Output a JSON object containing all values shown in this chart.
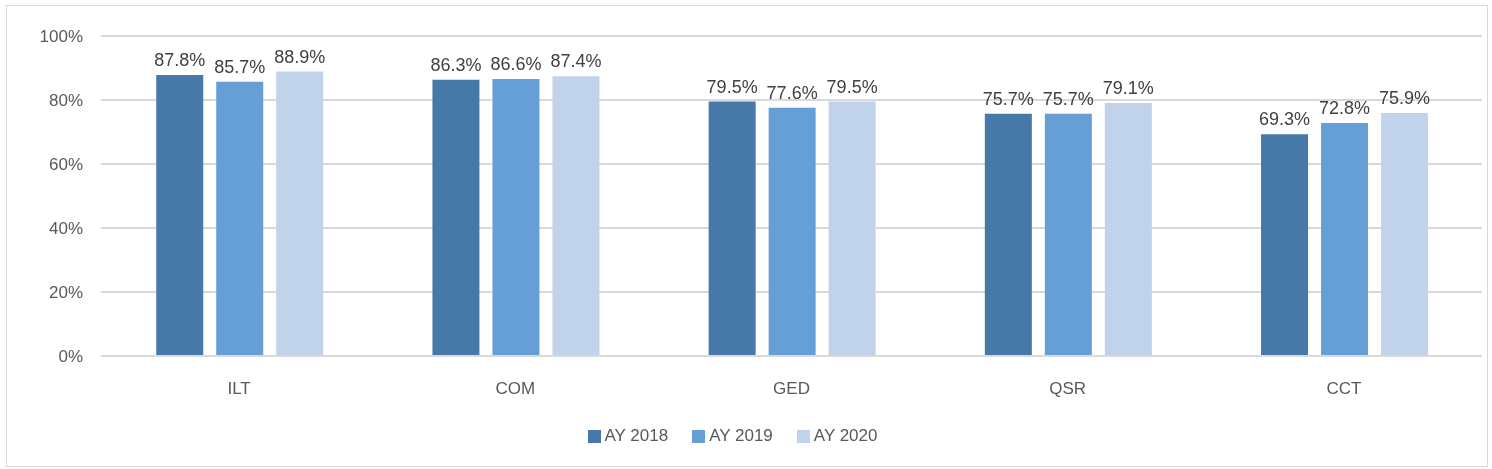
{
  "chart_data": {
    "type": "bar",
    "categories": [
      "ILT",
      "COM",
      "GED",
      "QSR",
      "CCT"
    ],
    "series": [
      {
        "name": "AY 2018",
        "color": "#4679a8",
        "values": [
          87.8,
          86.3,
          79.5,
          75.7,
          69.3
        ],
        "value_labels": [
          "87.8%",
          "86.3%",
          "79.5%",
          "75.7%",
          "69.3%"
        ]
      },
      {
        "name": "AY 2019",
        "color": "#659fd6",
        "values": [
          85.7,
          86.6,
          77.6,
          75.7,
          72.8
        ],
        "value_labels": [
          "85.7%",
          "86.6%",
          "77.6%",
          "75.7%",
          "72.8%"
        ]
      },
      {
        "name": "AY 2020",
        "color": "#c0d3ea",
        "values": [
          88.9,
          87.4,
          79.5,
          79.1,
          75.9
        ],
        "value_labels": [
          "88.9%",
          "87.4%",
          "79.5%",
          "79.1%",
          "75.9%"
        ]
      }
    ],
    "ylim": [
      0,
      100
    ],
    "yticks": [
      {
        "value": 0,
        "label": "0%"
      },
      {
        "value": 20,
        "label": "20%"
      },
      {
        "value": 40,
        "label": "40%"
      },
      {
        "value": 60,
        "label": "60%"
      },
      {
        "value": 80,
        "label": "80%"
      },
      {
        "value": 100,
        "label": "100%"
      }
    ],
    "grid": "y",
    "legend": "bottom"
  }
}
